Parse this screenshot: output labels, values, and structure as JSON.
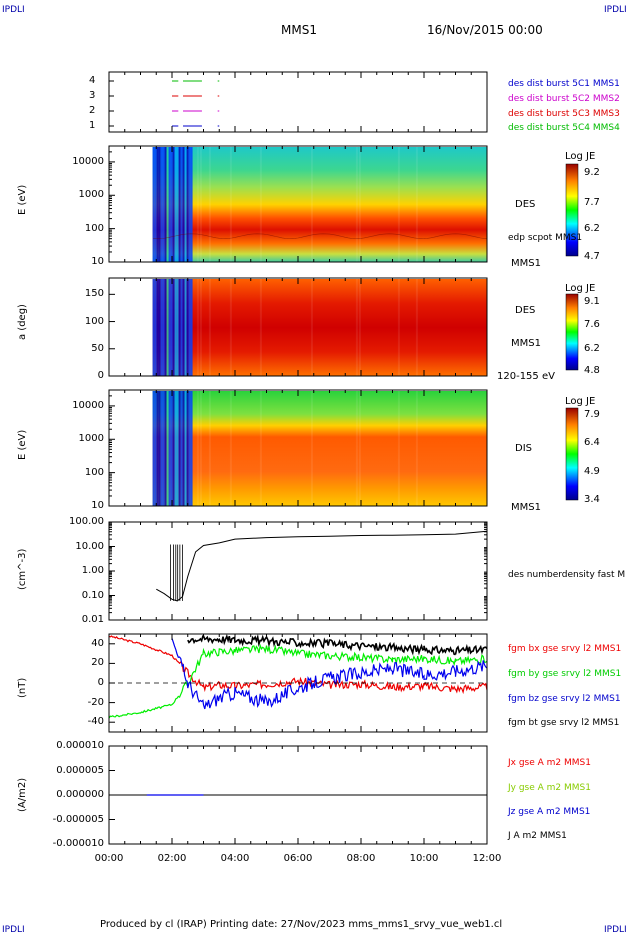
{
  "header": {
    "ipdl_left": "IPDLI",
    "ipdl_right": "IPDLI",
    "title": "MMS1",
    "date": "16/Nov/2015 00:00"
  },
  "footer": {
    "text": "Produced by cl (IRAP)   Printing date: 27/Nov/2023   mms_mms1_srvy_vue_web1.cl",
    "ipdl_left": "IPDLI",
    "ipdl_right": "IPDLI"
  },
  "colors": {
    "mms1": "#0000cc",
    "mms2": "#cc00cc",
    "mms3": "#dd0000",
    "mms4": "#00bb00",
    "bx": "#ee0000",
    "by": "#00ee00",
    "bz": "#0000ee",
    "bt": "#000000"
  },
  "chart_data": [
    {
      "type": "line",
      "panel": "burst-availability",
      "yticks": [
        "4",
        "3",
        "2",
        "1"
      ],
      "legend": [
        "des dist burst 5C1 MMS1",
        "des dist burst 5C2 MMS2",
        "des dist burst 5C3 MMS3",
        "des dist burst 5C4 MMS4"
      ],
      "series": [
        {
          "name": "des dist burst 5C1 MMS1",
          "level": 1,
          "segments": [
            [
              2.0,
              2.2
            ],
            [
              2.35,
              2.95
            ],
            [
              3.45,
              3.5
            ]
          ]
        },
        {
          "name": "des dist burst 5C2 MMS2",
          "level": 2,
          "segments": [
            [
              2.0,
              2.2
            ],
            [
              2.35,
              2.95
            ],
            [
              3.45,
              3.5
            ]
          ]
        },
        {
          "name": "des dist burst 5C3 MMS3",
          "level": 3,
          "segments": [
            [
              2.0,
              2.2
            ],
            [
              2.35,
              2.95
            ],
            [
              3.45,
              3.5
            ]
          ]
        },
        {
          "name": "des dist burst 5C4 MMS4",
          "level": 4,
          "segments": [
            [
              2.0,
              2.2
            ],
            [
              2.35,
              2.95
            ],
            [
              3.45,
              3.5
            ]
          ]
        }
      ]
    },
    {
      "type": "heatmap",
      "panel": "des-energy",
      "ylabel": "E (eV)",
      "yscale": "log",
      "ylim": [
        10,
        30000
      ],
      "yticks": [
        "10000",
        "1000",
        "100",
        "10"
      ],
      "instrument": "DES",
      "sublabel": "MMS1",
      "overlay": "edp scpot MMS1",
      "colorbar": {
        "title": "Log JE",
        "ticks": [
          "9.2",
          "7.7",
          "6.2",
          "4.7"
        ]
      },
      "data_start": "01:23",
      "data_end": "12:00"
    },
    {
      "type": "heatmap",
      "panel": "des-pitch",
      "ylabel": "a (deg)",
      "ylim": [
        0,
        180
      ],
      "yticks": [
        "150",
        "100",
        "50",
        "0"
      ],
      "instrument": "DES",
      "sublabel": "MMS1",
      "energy_range": "120-155 eV",
      "colorbar": {
        "title": "Log JE",
        "ticks": [
          "9.1",
          "7.6",
          "6.2",
          "4.8"
        ]
      },
      "data_start": "01:23",
      "data_end": "12:00"
    },
    {
      "type": "heatmap",
      "panel": "dis-energy",
      "ylabel": "E (eV)",
      "yscale": "log",
      "ylim": [
        10,
        30000
      ],
      "yticks": [
        "10000",
        "1000",
        "100",
        "10"
      ],
      "instrument": "DIS",
      "sublabel": "MMS1",
      "colorbar": {
        "title": "Log JE",
        "ticks": [
          "7.9",
          "6.4",
          "4.9",
          "3.4"
        ]
      },
      "data_start": "01:23",
      "data_end": "12:00"
    },
    {
      "type": "line",
      "panel": "density",
      "ylabel": "(cm^-3)",
      "yscale": "log",
      "ylim": [
        0.01,
        100
      ],
      "yticks": [
        "100.00",
        "10.00",
        "1.00",
        "0.10",
        "0.01"
      ],
      "series": [
        {
          "name": "des numberdensity fast M",
          "x": [
            "01:30",
            "01:45",
            "02:00",
            "02:10",
            "02:20",
            "02:30",
            "02:45",
            "03:00",
            "03:30",
            "04:00",
            "05:00",
            "06:00",
            "07:00",
            "08:00",
            "09:00",
            "10:00",
            "11:00",
            "12:00"
          ],
          "y": [
            0.18,
            0.12,
            0.07,
            0.06,
            0.09,
            0.6,
            6.0,
            11.0,
            14.0,
            20.0,
            23.0,
            25.0,
            26.0,
            28.0,
            29.0,
            30.0,
            32.0,
            42.0
          ]
        }
      ]
    },
    {
      "type": "line",
      "panel": "magnetic-field",
      "ylabel": "(nT)",
      "ylim": [
        -50,
        50
      ],
      "yticks": [
        "40",
        "20",
        "0",
        "-20",
        "-40"
      ],
      "series": [
        {
          "name": "fgm bx gse srvy l2 MMS1",
          "x": [
            "00:00",
            "01:00",
            "02:00",
            "02:30",
            "03:00",
            "03:30",
            "04:00",
            "05:00",
            "06:00",
            "07:00",
            "08:00",
            "09:00",
            "10:00",
            "11:00",
            "12:00"
          ],
          "y": [
            48,
            40,
            28,
            10,
            -5,
            -2,
            -3,
            -1,
            2,
            -2,
            -1,
            -4,
            -3,
            -6,
            -4
          ]
        },
        {
          "name": "fgm by gse srvy l2 MMS1",
          "x": [
            "00:00",
            "01:00",
            "02:00",
            "02:30",
            "03:00",
            "03:30",
            "04:00",
            "05:00",
            "06:00",
            "07:00",
            "08:00",
            "09:00",
            "10:00",
            "11:00",
            "12:00"
          ],
          "y": [
            -35,
            -30,
            -22,
            0,
            30,
            32,
            33,
            35,
            30,
            28,
            26,
            24,
            25,
            22,
            25
          ]
        },
        {
          "name": "fgm bz gse srvy l2 MMS1",
          "x": [
            "00:00",
            "01:00",
            "02:00",
            "02:30",
            "03:00",
            "03:30",
            "04:00",
            "05:00",
            "06:00",
            "07:00",
            "08:00",
            "09:00",
            "10:00",
            "11:00",
            "12:00"
          ],
          "y": [
            null,
            null,
            45,
            0,
            -25,
            -15,
            -10,
            -20,
            -5,
            5,
            10,
            15,
            8,
            12,
            18
          ]
        },
        {
          "name": "fgm bt gse srvy l2 MMS1",
          "x": [
            "00:00",
            "01:00",
            "02:00",
            "02:30",
            "03:00",
            "03:30",
            "04:00",
            "05:00",
            "06:00",
            "07:00",
            "08:00",
            "09:00",
            "10:00",
            "11:00",
            "12:00"
          ],
          "y": [
            null,
            null,
            null,
            45,
            45,
            45,
            44,
            43,
            41,
            40,
            38,
            36,
            34,
            33,
            34
          ]
        }
      ]
    },
    {
      "type": "line",
      "panel": "current-density",
      "ylabel": "(A/m2)",
      "ylim": [
        -1e-05,
        1e-05
      ],
      "yticks": [
        "0.000010",
        "0.000005",
        "0.000000",
        "-0.000005",
        "-0.000010"
      ],
      "series": [
        {
          "name": "Jx gse A m2 MMS1",
          "value": 0
        },
        {
          "name": "Jy gse A m2 MMS1",
          "value": 0
        },
        {
          "name": "Jz gse A m2 MMS1",
          "value": 0
        },
        {
          "name": "J A m2 MMS1",
          "value": 0
        }
      ]
    }
  ],
  "xaxis": {
    "ticks": [
      "00:00",
      "02:00",
      "04:00",
      "06:00",
      "08:00",
      "10:00",
      "12:00"
    ],
    "range": [
      "00:00",
      "12:00"
    ]
  }
}
